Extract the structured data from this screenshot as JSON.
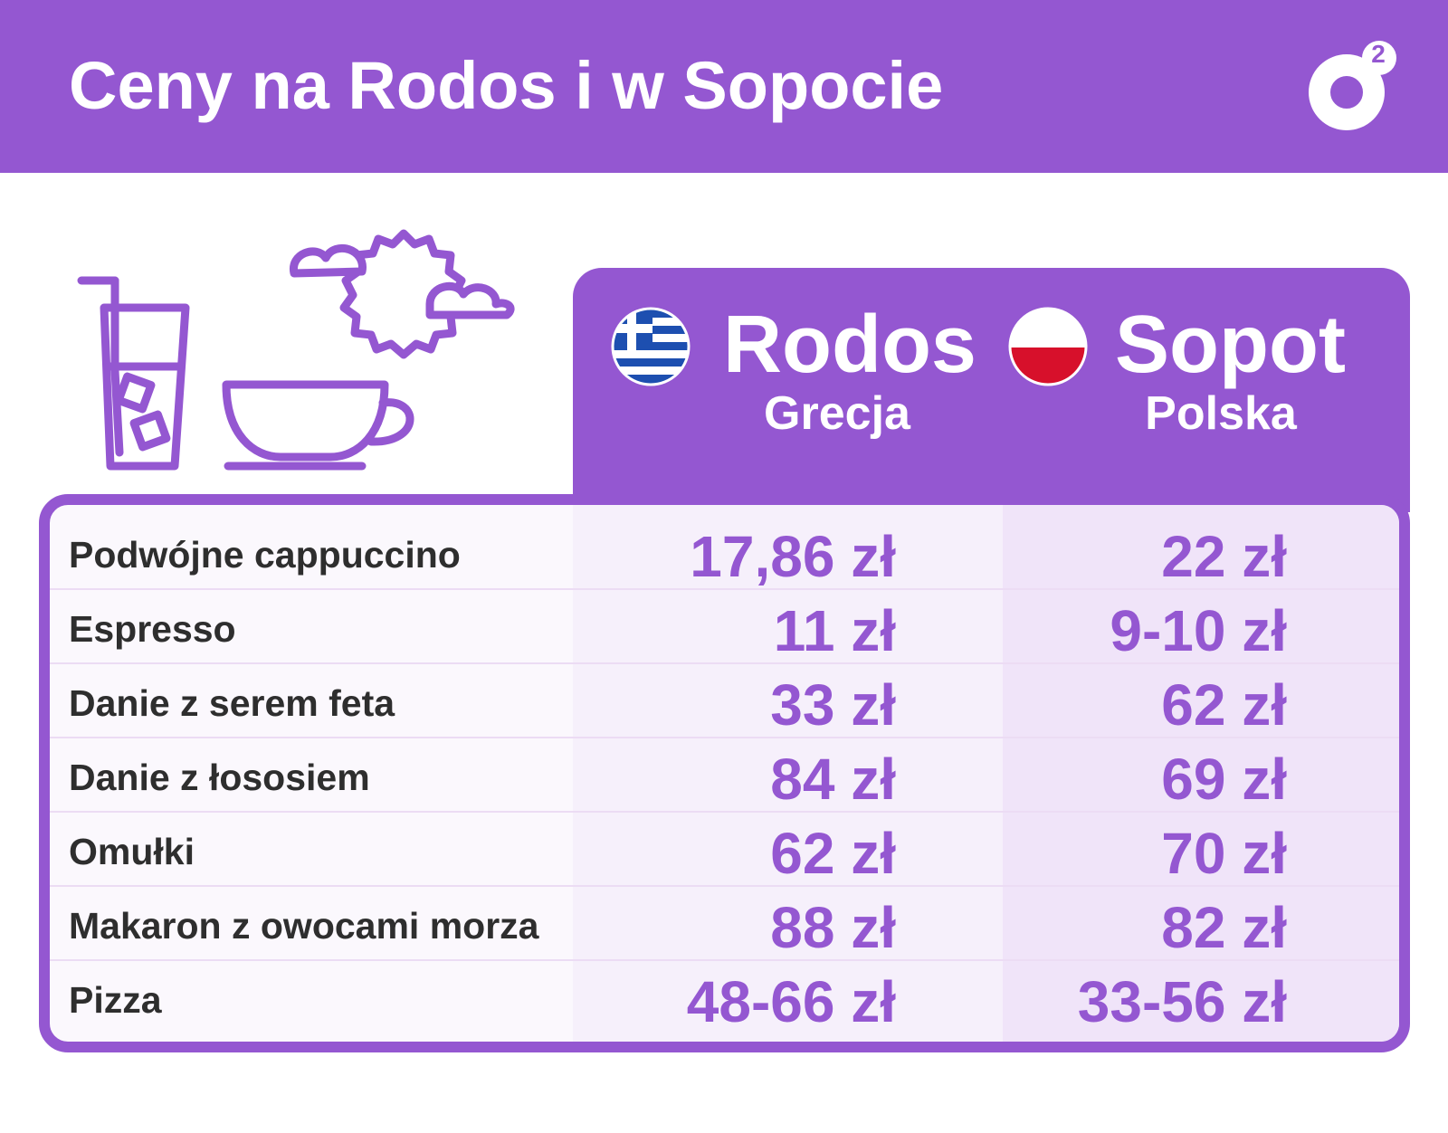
{
  "header": {
    "title": "Ceny na Rodos i w Sopocie",
    "logo": "2"
  },
  "table": {
    "columns": [
      {
        "name": "Rodos",
        "subtitle": "Grecja"
      },
      {
        "name": "Sopot",
        "subtitle": "Polska"
      }
    ],
    "rows": [
      [
        "Podwójne cappuccino",
        "17,86 zł",
        "22 zł"
      ],
      [
        "Espresso",
        "11 zł",
        "9-10 zł"
      ],
      [
        "Danie z serem feta",
        "33 zł",
        "62 zł"
      ],
      [
        "Danie z łososiem",
        "84 zł",
        "69 zł"
      ],
      [
        "Omułki",
        "62 zł",
        "70 zł"
      ],
      [
        "Makaron z owocami morza",
        "88 zł",
        "82 zł"
      ],
      [
        "Pizza",
        "48-66 zł",
        "33-56 zł"
      ]
    ]
  }
}
